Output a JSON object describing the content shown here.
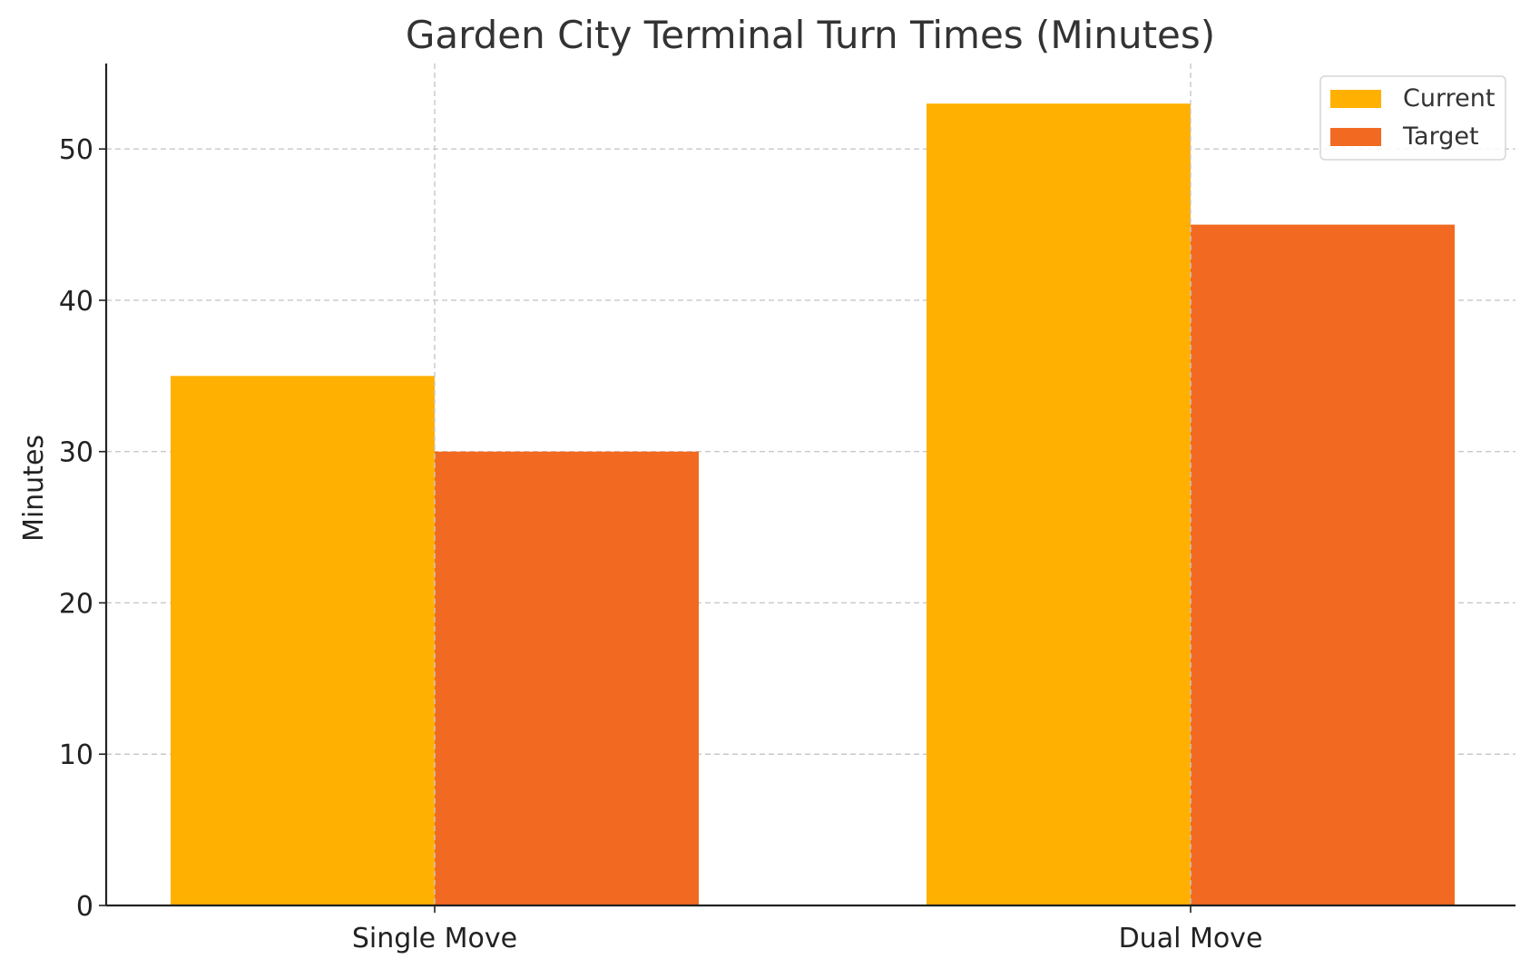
{
  "chart_data": {
    "type": "bar",
    "title": "Garden City Terminal Turn Times (Minutes)",
    "xlabel": "",
    "ylabel": "Minutes",
    "categories": [
      "Single Move",
      "Dual Move"
    ],
    "series": [
      {
        "name": "Current",
        "color": "#FFB000",
        "values": [
          35,
          53
        ]
      },
      {
        "name": "Target",
        "color": "#F26A22",
        "values": [
          30,
          45
        ]
      }
    ],
    "ylim": [
      0,
      55.65
    ],
    "yticks": [
      0,
      10,
      20,
      30,
      40,
      50
    ],
    "grid": true,
    "legend_position": "top-right"
  }
}
